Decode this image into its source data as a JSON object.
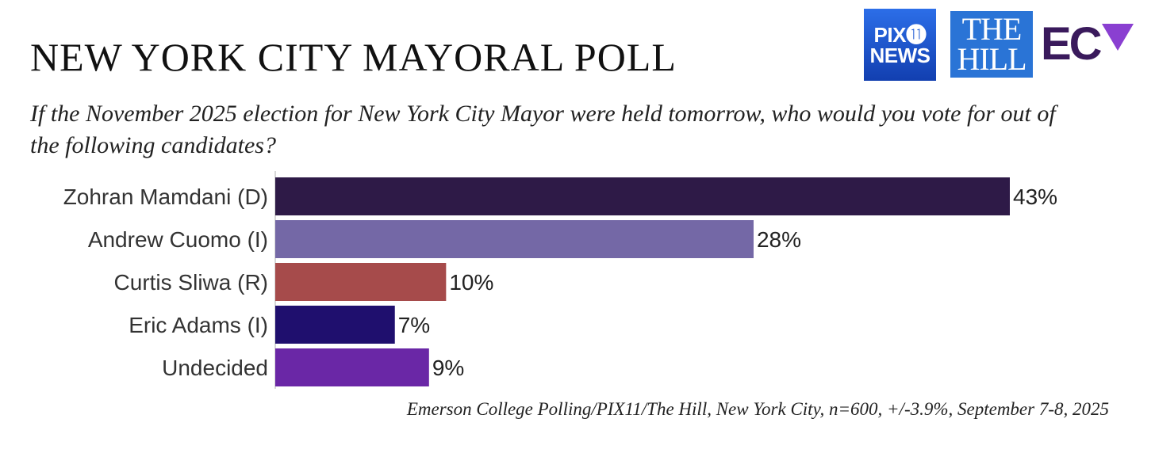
{
  "header": {
    "title": "NEW YORK CITY MAYORAL POLL",
    "question": "If the November 2025 election for New York City Mayor were held tomorrow, who would you vote for out of the following candidates?"
  },
  "logos": {
    "pix_line1": "PIX⓫",
    "pix_line2": "NEWS",
    "hill_line1": "THE",
    "hill_line2": "HILL",
    "ecp": "EC"
  },
  "chart_data": {
    "type": "bar",
    "orientation": "horizontal",
    "categories": [
      "Zohran Mamdani (D)",
      "Andrew Cuomo (I)",
      "Curtis Sliwa (R)",
      "Eric Adams (I)",
      "Undecided"
    ],
    "values": [
      43,
      28,
      10,
      7,
      9
    ],
    "value_labels": [
      "43%",
      "28%",
      "10%",
      "7%",
      "9%"
    ],
    "colors": [
      "#2e1a47",
      "#7468a6",
      "#a64b4b",
      "#1f0f6e",
      "#6a27a6"
    ],
    "xlim": [
      0,
      43
    ],
    "grid": false
  },
  "footer": {
    "source": "Emerson College Polling/PIX11/The Hill, New York City, n=600, +/-3.9%, September 7-8, 2025"
  }
}
